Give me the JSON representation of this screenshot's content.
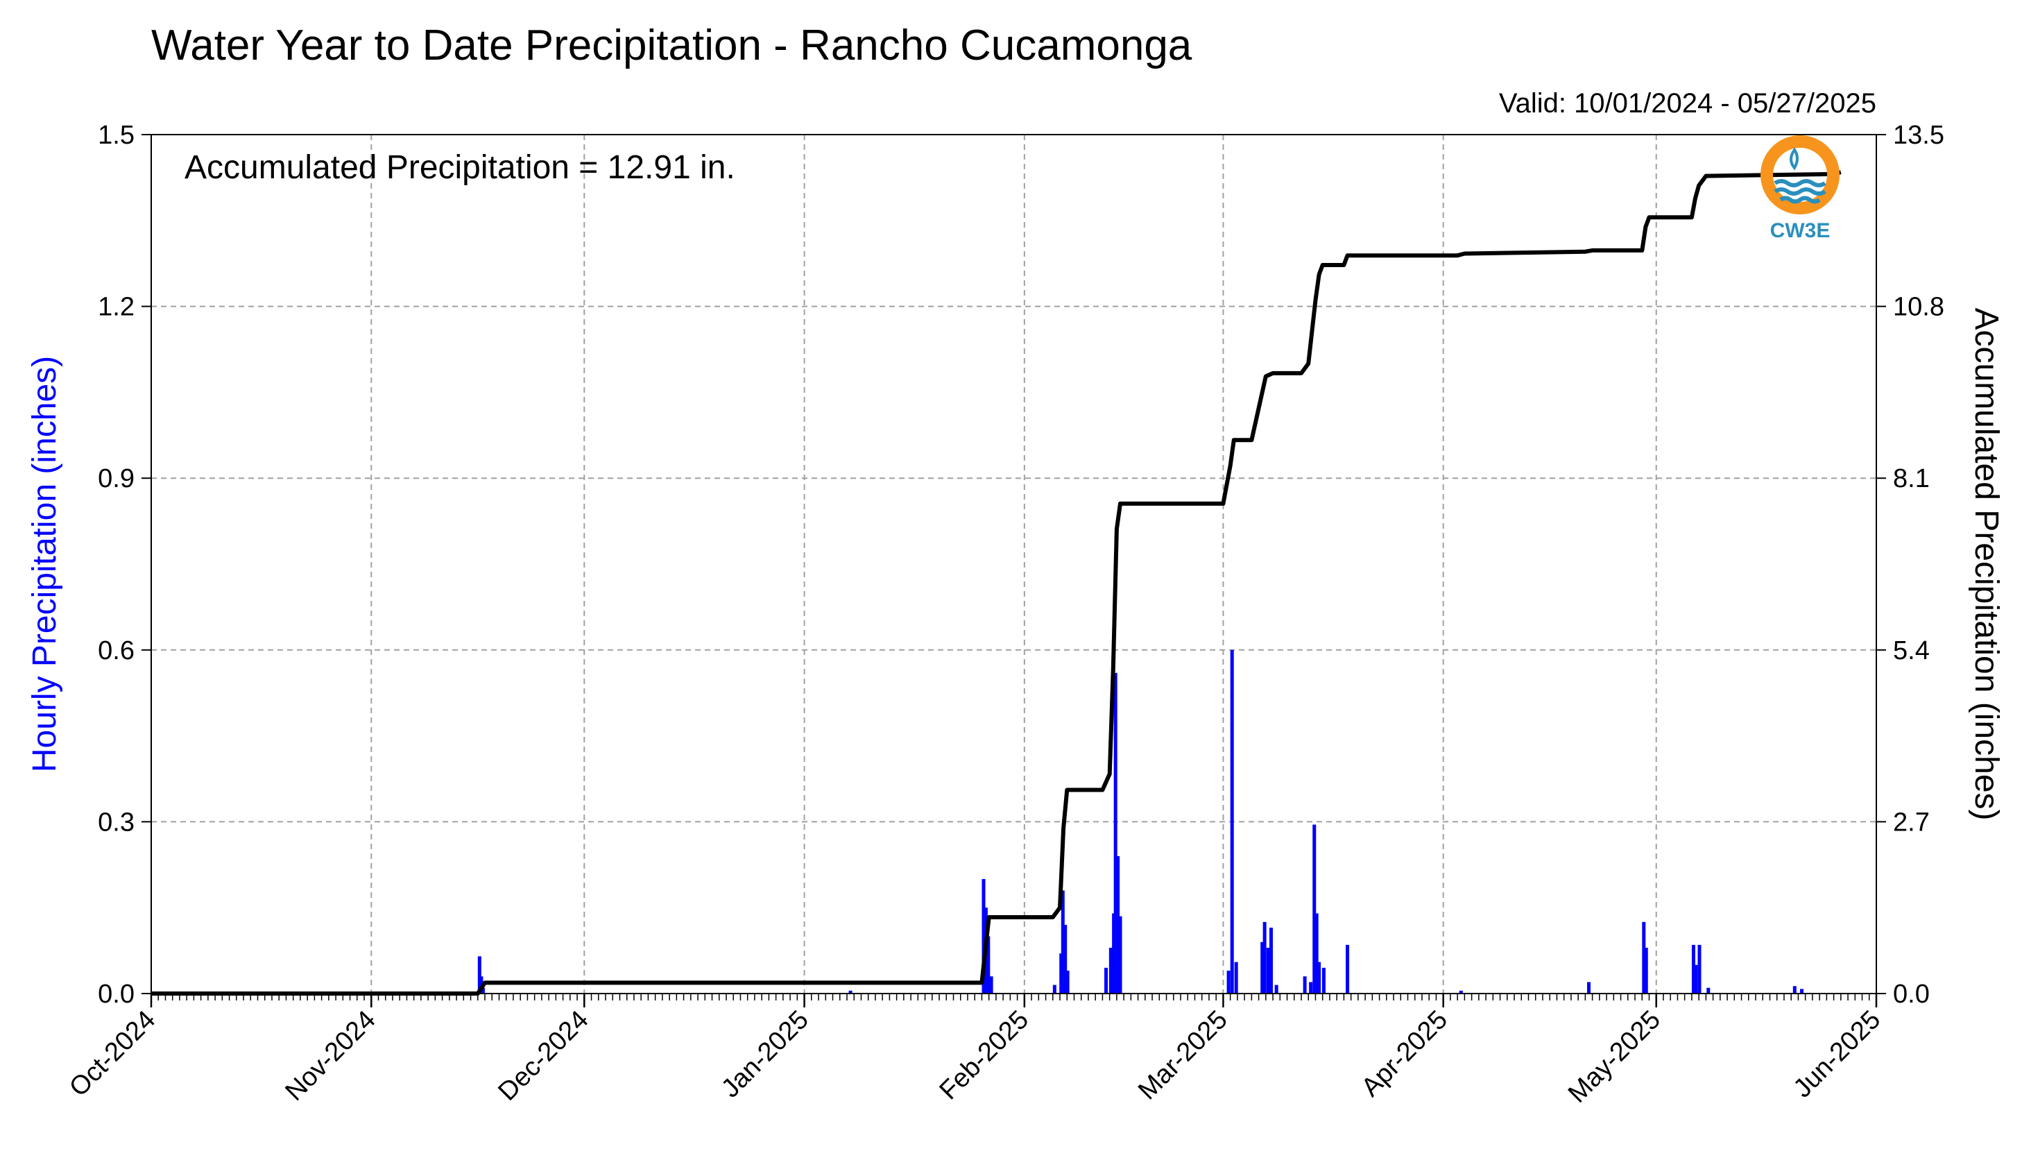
{
  "chart_data": {
    "type": "bar",
    "title": "Water Year to Date Precipitation - Rancho Cucamonga",
    "valid_text": "Valid: 10/01/2024 - 05/27/2025",
    "annotation": "Accumulated Precipitation = 12.91 in.",
    "ylabel": "Hourly Precipitation (inches)",
    "ylabel_color": "#0000ff",
    "y2label": "Accumulated Precipitation (inches)",
    "xlim": [
      "2024-10-01",
      "2025-06-01"
    ],
    "ylim": [
      0,
      1.5
    ],
    "y2lim": [
      0,
      13.5
    ],
    "x_ticks": [
      {
        "date": "2024-10-01",
        "label": "Oct-2024"
      },
      {
        "date": "2024-11-01",
        "label": "Nov-2024"
      },
      {
        "date": "2024-12-01",
        "label": "Dec-2024"
      },
      {
        "date": "2025-01-01",
        "label": "Jan-2025"
      },
      {
        "date": "2025-02-01",
        "label": "Feb-2025"
      },
      {
        "date": "2025-03-01",
        "label": "Mar-2025"
      },
      {
        "date": "2025-04-01",
        "label": "Apr-2025"
      },
      {
        "date": "2025-05-01",
        "label": "May-2025"
      },
      {
        "date": "2025-06-01",
        "label": "Jun-2025"
      }
    ],
    "y_ticks": [
      "0.0",
      "0.3",
      "0.6",
      "0.9",
      "1.2",
      "1.5"
    ],
    "y2_ticks": [
      "0.0",
      "2.7",
      "5.4",
      "8.1",
      "10.8",
      "13.5"
    ],
    "grid": true,
    "hourly_color": "#0000ff",
    "accum_color": "#000000",
    "series": [
      {
        "name": "Hourly Precipitation",
        "points": [
          {
            "x": "2024-11-16 06:00",
            "y": 0.065
          },
          {
            "x": "2024-11-16 12:00",
            "y": 0.03
          },
          {
            "x": "2024-11-16 18:00",
            "y": 0.01
          },
          {
            "x": "2025-01-07 12:00",
            "y": 0.005
          },
          {
            "x": "2025-01-26 06:00",
            "y": 0.2
          },
          {
            "x": "2025-01-26 14:00",
            "y": 0.15
          },
          {
            "x": "2025-01-26 22:00",
            "y": 0.1
          },
          {
            "x": "2025-01-27 08:00",
            "y": 0.03
          },
          {
            "x": "2025-02-05 06:00",
            "y": 0.015
          },
          {
            "x": "2025-02-06 04:00",
            "y": 0.07
          },
          {
            "x": "2025-02-06 10:00",
            "y": 0.18
          },
          {
            "x": "2025-02-06 18:00",
            "y": 0.12
          },
          {
            "x": "2025-02-07 02:00",
            "y": 0.04
          },
          {
            "x": "2025-02-12 12:00",
            "y": 0.045
          },
          {
            "x": "2025-02-13 04:00",
            "y": 0.08
          },
          {
            "x": "2025-02-13 14:00",
            "y": 0.14
          },
          {
            "x": "2025-02-13 20:00",
            "y": 0.56
          },
          {
            "x": "2025-02-14 04:00",
            "y": 0.24
          },
          {
            "x": "2025-02-14 12:00",
            "y": 0.135
          },
          {
            "x": "2025-03-01 18:00",
            "y": 0.04
          },
          {
            "x": "2025-03-02 06:00",
            "y": 0.6
          },
          {
            "x": "2025-03-02 20:00",
            "y": 0.055
          },
          {
            "x": "2025-03-06 12:00",
            "y": 0.09
          },
          {
            "x": "2025-03-06 20:00",
            "y": 0.125
          },
          {
            "x": "2025-03-07 08:00",
            "y": 0.08
          },
          {
            "x": "2025-03-07 18:00",
            "y": 0.115
          },
          {
            "x": "2025-03-08 12:00",
            "y": 0.015
          },
          {
            "x": "2025-03-12 12:00",
            "y": 0.03
          },
          {
            "x": "2025-03-13 08:00",
            "y": 0.02
          },
          {
            "x": "2025-03-13 20:00",
            "y": 0.295
          },
          {
            "x": "2025-03-14 04:00",
            "y": 0.14
          },
          {
            "x": "2025-03-14 12:00",
            "y": 0.055
          },
          {
            "x": "2025-03-15 04:00",
            "y": 0.045
          },
          {
            "x": "2025-03-18 12:00",
            "y": 0.085
          },
          {
            "x": "2025-04-03 12:00",
            "y": 0.005
          },
          {
            "x": "2025-04-21 12:00",
            "y": 0.02
          },
          {
            "x": "2025-04-29 06:00",
            "y": 0.125
          },
          {
            "x": "2025-04-29 14:00",
            "y": 0.08
          },
          {
            "x": "2025-05-06 06:00",
            "y": 0.085
          },
          {
            "x": "2025-05-06 14:00",
            "y": 0.05
          },
          {
            "x": "2025-05-07 02:00",
            "y": 0.085
          },
          {
            "x": "2025-05-08 08:00",
            "y": 0.01
          },
          {
            "x": "2025-05-20 12:00",
            "y": 0.013
          },
          {
            "x": "2025-05-21 12:00",
            "y": 0.008
          }
        ]
      },
      {
        "name": "Accumulated Precipitation",
        "points": [
          {
            "x": "2024-10-01",
            "y": 0.0
          },
          {
            "x": "2024-11-16",
            "y": 0.0
          },
          {
            "x": "2024-11-17",
            "y": 0.17
          },
          {
            "x": "2025-01-26",
            "y": 0.17
          },
          {
            "x": "2025-01-26 12:00",
            "y": 0.7
          },
          {
            "x": "2025-01-27",
            "y": 1.2
          },
          {
            "x": "2025-02-05",
            "y": 1.2
          },
          {
            "x": "2025-02-06",
            "y": 1.35
          },
          {
            "x": "2025-02-06 12:00",
            "y": 2.6
          },
          {
            "x": "2025-02-07",
            "y": 3.2
          },
          {
            "x": "2025-02-12",
            "y": 3.2
          },
          {
            "x": "2025-02-13",
            "y": 3.45
          },
          {
            "x": "2025-02-13 12:00",
            "y": 5.1
          },
          {
            "x": "2025-02-14",
            "y": 7.3
          },
          {
            "x": "2025-02-14 12:00",
            "y": 7.7
          },
          {
            "x": "2025-03-01",
            "y": 7.7
          },
          {
            "x": "2025-03-02",
            "y": 8.3
          },
          {
            "x": "2025-03-02 12:00",
            "y": 8.7
          },
          {
            "x": "2025-03-05",
            "y": 8.7
          },
          {
            "x": "2025-03-06",
            "y": 9.2
          },
          {
            "x": "2025-03-07",
            "y": 9.7
          },
          {
            "x": "2025-03-08",
            "y": 9.75
          },
          {
            "x": "2025-03-12",
            "y": 9.75
          },
          {
            "x": "2025-03-13",
            "y": 9.9
          },
          {
            "x": "2025-03-14",
            "y": 10.9
          },
          {
            "x": "2025-03-14 12:00",
            "y": 11.3
          },
          {
            "x": "2025-03-15",
            "y": 11.45
          },
          {
            "x": "2025-03-18",
            "y": 11.45
          },
          {
            "x": "2025-03-18 12:00",
            "y": 11.6
          },
          {
            "x": "2025-04-03",
            "y": 11.6
          },
          {
            "x": "2025-04-04",
            "y": 11.63
          },
          {
            "x": "2025-04-21",
            "y": 11.66
          },
          {
            "x": "2025-04-22",
            "y": 11.68
          },
          {
            "x": "2025-04-29",
            "y": 11.68
          },
          {
            "x": "2025-04-29 12:00",
            "y": 12.05
          },
          {
            "x": "2025-04-30",
            "y": 12.2
          },
          {
            "x": "2025-05-06",
            "y": 12.2
          },
          {
            "x": "2025-05-06 12:00",
            "y": 12.5
          },
          {
            "x": "2025-05-07",
            "y": 12.7
          },
          {
            "x": "2025-05-08",
            "y": 12.85
          },
          {
            "x": "2025-05-26",
            "y": 12.88
          },
          {
            "x": "2025-05-27",
            "y": 12.91
          }
        ]
      }
    ]
  },
  "logo": {
    "text": "CW3E",
    "sun_color": "#f7941d",
    "wave_color": "#2a8fbd"
  }
}
